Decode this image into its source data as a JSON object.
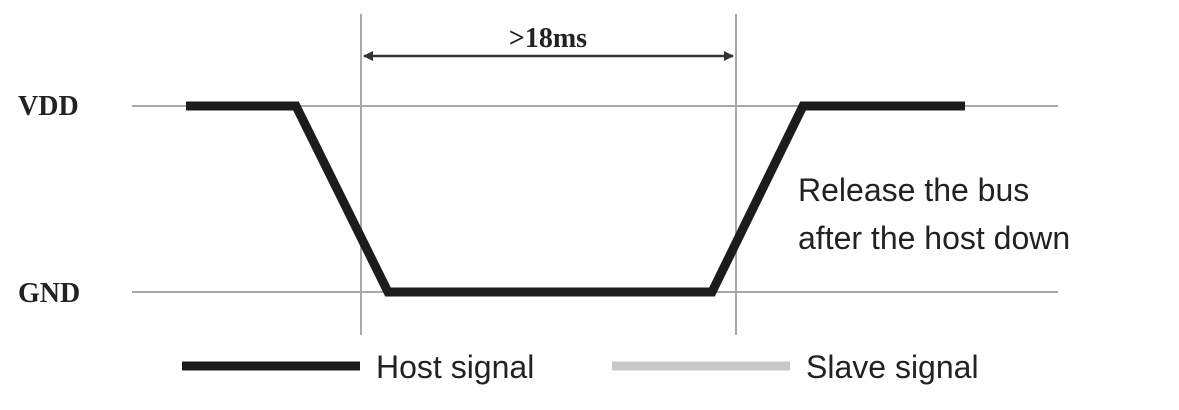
{
  "levels": {
    "vdd_label": "VDD",
    "gnd_label": "GND"
  },
  "timing": {
    "duration_label": ">18ms"
  },
  "annotation": {
    "line1": "Release the bus",
    "line2": "after the host down"
  },
  "legend": {
    "host_label": "Host signal",
    "slave_label": "Slave signal"
  },
  "colors": {
    "host_signal": "#1c1c1c",
    "slave_signal": "#c8c8c8",
    "grid_line": "#a8a8a8",
    "text": "#222222"
  }
}
